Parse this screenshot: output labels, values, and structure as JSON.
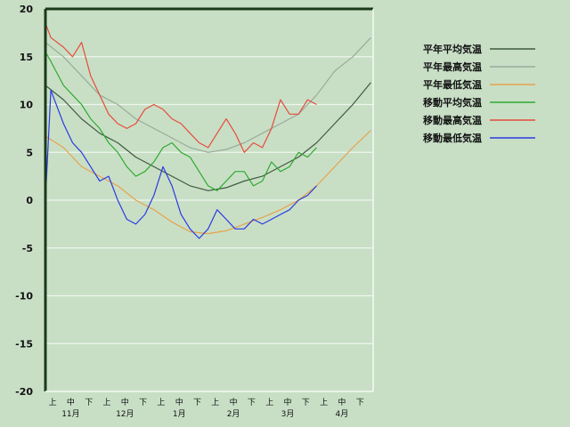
{
  "chart_data": {
    "type": "line",
    "title": "",
    "xlabel": "",
    "ylabel": "",
    "ylim": [
      -20,
      20
    ],
    "yticks": [
      20,
      15,
      10,
      5,
      0,
      -5,
      -10,
      -15,
      -20
    ],
    "grid": true,
    "legend_placement": "right",
    "x_period_labels": [
      "上",
      "中",
      "下"
    ],
    "x_months": [
      "11月",
      "12月",
      "1月",
      "2月",
      "3月",
      "4月"
    ],
    "x_unit": "half-month period index (0 = 11月上旬 start, 18 = 4月下旬 end)",
    "xlim": [
      0,
      18
    ],
    "series": [
      {
        "name": "平年平均気温",
        "color": "#3f5a3f",
        "x": [
          0,
          1,
          2,
          3,
          4,
          5,
          6,
          7,
          8,
          9,
          10,
          11,
          12,
          13,
          14,
          15,
          16,
          17,
          18
        ],
        "y": [
          12.0,
          10.5,
          8.5,
          7.0,
          6.0,
          4.5,
          3.5,
          2.5,
          1.5,
          1.0,
          1.3,
          2.0,
          2.5,
          3.5,
          4.5,
          6.0,
          8.0,
          10.0,
          12.3
        ]
      },
      {
        "name": "平年最高気温",
        "color": "#9aaa9a",
        "x": [
          0,
          1,
          2,
          3,
          4,
          5,
          6,
          7,
          8,
          9,
          10,
          11,
          12,
          13,
          14,
          15,
          16,
          17,
          18
        ],
        "y": [
          16.5,
          15.0,
          13.0,
          11.0,
          10.0,
          8.5,
          7.5,
          6.5,
          5.5,
          5.0,
          5.3,
          6.0,
          7.0,
          8.0,
          9.0,
          11.0,
          13.5,
          15.0,
          17.0
        ]
      },
      {
        "name": "平年最低気温",
        "color": "#e8a24a",
        "x": [
          0,
          1,
          2,
          3,
          4,
          5,
          6,
          7,
          8,
          9,
          10,
          11,
          12,
          13,
          14,
          15,
          16,
          17,
          18
        ],
        "y": [
          6.7,
          5.5,
          3.5,
          2.5,
          1.5,
          0.0,
          -1.0,
          -2.3,
          -3.3,
          -3.5,
          -3.2,
          -2.5,
          -1.8,
          -1.0,
          0.0,
          1.5,
          3.5,
          5.5,
          7.3
        ]
      },
      {
        "name": "移動平均気温",
        "color": "#2eaa2e",
        "x": [
          0,
          0.3,
          1,
          1.5,
          2,
          2.5,
          3,
          3.5,
          4,
          4.5,
          5,
          5.5,
          6,
          6.5,
          7,
          7.5,
          8,
          8.5,
          9,
          9.5,
          10,
          10.5,
          11,
          11.5,
          12,
          12.5,
          13,
          13.5,
          14,
          14.5,
          15
        ],
        "y": [
          15.5,
          14.5,
          12.0,
          11.0,
          10.0,
          8.5,
          7.5,
          6.0,
          5.0,
          3.5,
          2.5,
          3.0,
          4.0,
          5.5,
          6.0,
          5.0,
          4.5,
          3.0,
          1.5,
          1.0,
          2.0,
          3.0,
          3.0,
          1.5,
          2.0,
          4.0,
          3.0,
          3.5,
          5.0,
          4.5,
          5.5
        ]
      },
      {
        "name": "移動最高気温",
        "color": "#e84a3a",
        "x": [
          0,
          0.3,
          1,
          1.5,
          2,
          2.5,
          3,
          3.5,
          4,
          4.5,
          5,
          5.5,
          6,
          6.5,
          7,
          7.5,
          8,
          8.5,
          9,
          9.5,
          10,
          10.5,
          11,
          11.5,
          12,
          12.5,
          13,
          13.5,
          14,
          14.5,
          15
        ],
        "y": [
          18.5,
          17.0,
          16.0,
          15.0,
          16.5,
          13.0,
          11.0,
          9.0,
          8.0,
          7.5,
          8.0,
          9.5,
          10.0,
          9.5,
          8.5,
          8.0,
          7.0,
          6.0,
          5.5,
          7.0,
          8.5,
          7.0,
          5.0,
          6.0,
          5.5,
          7.5,
          10.5,
          9.0,
          9.0,
          10.5,
          10.0
        ]
      },
      {
        "name": "移動最低気温",
        "color": "#2a3ae0",
        "x": [
          0,
          0.3,
          1,
          1.5,
          2,
          2.5,
          3,
          3.5,
          4,
          4.5,
          5,
          5.5,
          6,
          6.5,
          7,
          7.5,
          8,
          8.5,
          9,
          9.5,
          10,
          10.5,
          11,
          11.5,
          12,
          12.5,
          13,
          13.5,
          14,
          14.5,
          15
        ],
        "y": [
          0.0,
          11.5,
          8.0,
          6.0,
          5.0,
          3.5,
          2.0,
          2.5,
          0.0,
          -2.0,
          -2.5,
          -1.5,
          0.5,
          3.5,
          1.5,
          -1.5,
          -3.0,
          -4.0,
          -3.0,
          -1.0,
          -2.0,
          -3.0,
          -3.0,
          -2.0,
          -2.5,
          -2.0,
          -1.5,
          -1.0,
          0.0,
          0.5,
          1.5
        ]
      }
    ]
  }
}
